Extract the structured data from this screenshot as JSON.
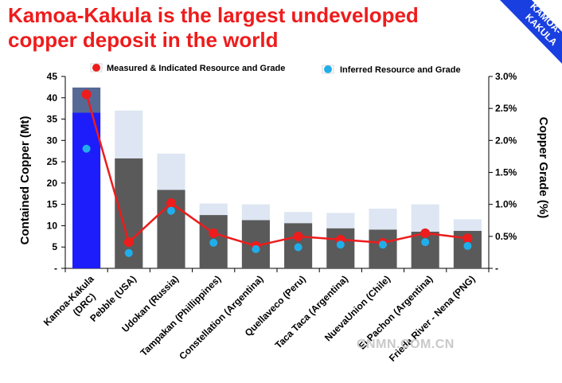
{
  "title_lines": [
    "Kamoa-Kakula is the largest undeveloped",
    "copper deposit in the world"
  ],
  "corner_banner": {
    "line1": "KAMOA-",
    "line2": "KAKULA",
    "color": "#1a3fe0"
  },
  "watermark": "CNMN.COM.CN",
  "chart_data": {
    "type": "bar",
    "categories": [
      "Kamoa-Kakula",
      "Pebble (USA)",
      "Udokan (Russia)",
      "Tampakan (Phillippines)",
      "Constellation (Argentina)",
      "Quellaveco (Peru)",
      "Taca Taca (Argentina)",
      "NuevaUnion (Chile)",
      "El Pachon (Argentina)",
      "Frieda River - Nena (PNG)"
    ],
    "category_sublabels": [
      "(DRC)",
      "",
      "",
      "",
      "",
      "",
      "",
      "",
      "",
      ""
    ],
    "highlight_category": 0,
    "series": [
      {
        "name": "Measured & Indicated Resource and Grade",
        "values": [
          36.5,
          25.8,
          18.4,
          12.5,
          11.3,
          10.6,
          9.4,
          9.1,
          8.6,
          8.8
        ]
      },
      {
        "name": "Inferred Resource and Grade",
        "values": [
          5.9,
          11.2,
          8.5,
          2.7,
          3.7,
          2.6,
          3.6,
          4.9,
          6.4,
          2.7
        ]
      }
    ],
    "grade_series": [
      {
        "name": "Measured & Indicated Resource and Grade",
        "values": [
          2.72,
          0.41,
          1.02,
          0.55,
          0.35,
          0.5,
          0.45,
          0.4,
          0.55,
          0.47
        ]
      },
      {
        "name": "Inferred Resource and Grade",
        "values": [
          1.87,
          0.24,
          0.9,
          0.4,
          0.3,
          0.33,
          0.37,
          0.37,
          0.41,
          0.35
        ]
      }
    ],
    "ylabel": "Contained Copper (Mt)",
    "y2label": "Copper Grade (%)",
    "ylim": [
      0,
      45
    ],
    "yticks": [
      0,
      5,
      10,
      15,
      20,
      25,
      30,
      35,
      40,
      45
    ],
    "ytick_labels": [
      "-",
      "5",
      "10",
      "15",
      "20",
      "25",
      "30",
      "35",
      "40",
      "45"
    ],
    "y2lim": [
      0,
      3.0
    ],
    "y2ticks": [
      0,
      0.5,
      1.0,
      1.5,
      2.0,
      2.5,
      3.0
    ],
    "y2tick_labels": [
      "-",
      "0.5%",
      "1.0%",
      "1.5%",
      "2.0%",
      "2.5%",
      "3.0%"
    ],
    "colors": {
      "mi_bar": "#5a5a5a",
      "inferred_bar": "#dde6f2",
      "highlight_bar": "#1d1dfb",
      "highlight_inferred_bar": "#566995",
      "mi_line": "#ee1c1c",
      "inferred_marker": "#20aeea",
      "highlight_label": "#1d1dfb"
    },
    "legend": "top",
    "grid": false
  }
}
